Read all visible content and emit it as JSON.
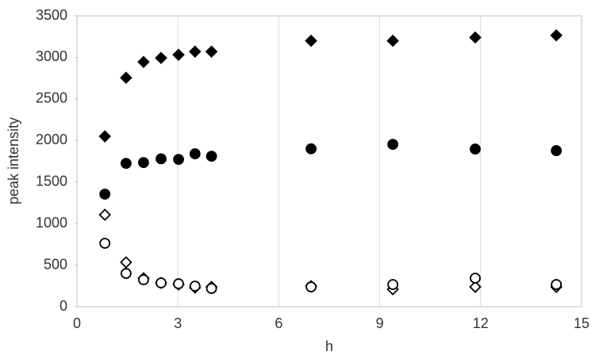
{
  "chart_data": {
    "type": "scatter",
    "x_label": "h",
    "y_label": "peak intensity",
    "x": [
      0.83,
      1.46,
      1.98,
      2.5,
      3.02,
      3.51,
      4.0,
      6.96,
      9.39,
      11.84,
      14.25
    ],
    "series": [
      {
        "color": "#000000",
        "marker": "diamond",
        "filled": true,
        "values": [
          2050,
          2755,
          2946,
          2993,
          3031,
          3070,
          3070,
          3200,
          3200,
          3240,
          3265
        ]
      },
      {
        "color": "#000000",
        "marker": "circle",
        "filled": true,
        "values": [
          1354,
          1725,
          1734,
          1780,
          1773,
          1840,
          1811,
          1900,
          1954,
          1897,
          1878
        ]
      },
      {
        "color": "#000000",
        "marker": "diamond",
        "filled": false,
        "values": [
          1106,
          534,
          343,
          286,
          267,
          229,
          238,
          248,
          210,
          238,
          238
        ]
      },
      {
        "color": "#000000",
        "marker": "circle",
        "filled": false,
        "values": [
          763,
          400,
          324,
          286,
          276,
          248,
          219,
          238,
          267,
          343,
          267
        ]
      }
    ],
    "xlim": [
      0,
      15
    ],
    "xticks": [
      0,
      3,
      6,
      9,
      12,
      15
    ],
    "ylim": [
      0,
      3500
    ],
    "yticks": [
      0,
      500,
      1000,
      1500,
      2000,
      2500,
      3000,
      3500
    ],
    "grid": "x"
  }
}
